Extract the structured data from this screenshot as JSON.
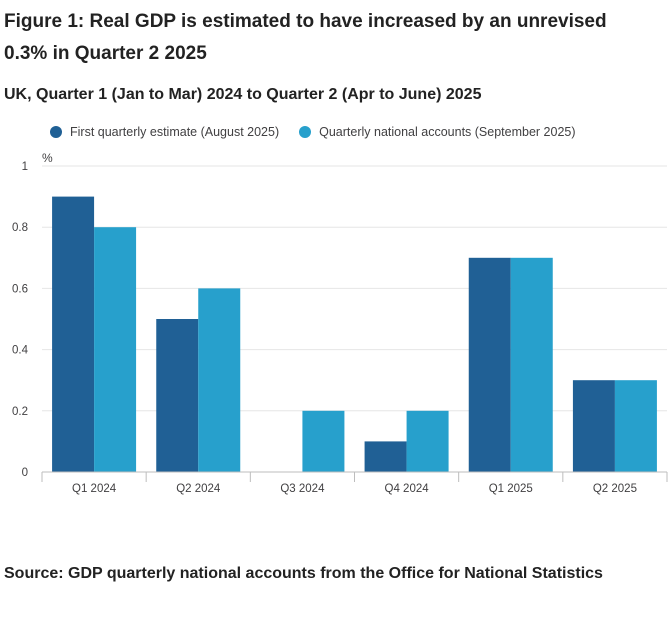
{
  "title": "Figure 1: Real GDP is estimated to have increased by an unrevised 0.3% in Quarter 2 2025",
  "subtitle": "UK, Quarter 1 (Jan to Mar) 2024 to Quarter 2 (Apr to June) 2025",
  "source": "Source: GDP quarterly national accounts from the Office for National Statistics",
  "colors": {
    "series1": "#206095",
    "series2": "#27a0cc",
    "grid": "#e6e6e6",
    "axis": "#bdbdbd"
  },
  "chart_data": {
    "type": "bar",
    "title": "Figure 1: Real GDP is estimated to have increased by an unrevised 0.3% in Quarter 2 2025",
    "subtitle": "UK, Quarter 1 (Jan to Mar) 2024 to Quarter 2 (Apr to June) 2025",
    "xlabel": "",
    "ylabel": "%",
    "ylim": [
      0,
      1
    ],
    "yticks": [
      "0",
      "0.2",
      "0.4",
      "0.6",
      "0.8",
      "1"
    ],
    "categories": [
      "Q1 2024",
      "Q2 2024",
      "Q3 2024",
      "Q4 2024",
      "Q1 2025",
      "Q2 2025"
    ],
    "legend_position": "top",
    "grid": true,
    "series": [
      {
        "name": "First quarterly estimate (August 2025)",
        "values": [
          0.9,
          0.5,
          0.0,
          0.1,
          0.7,
          0.3
        ]
      },
      {
        "name": "Quarterly national accounts (September 2025)",
        "values": [
          0.8,
          0.6,
          0.2,
          0.2,
          0.7,
          0.3
        ]
      }
    ]
  }
}
